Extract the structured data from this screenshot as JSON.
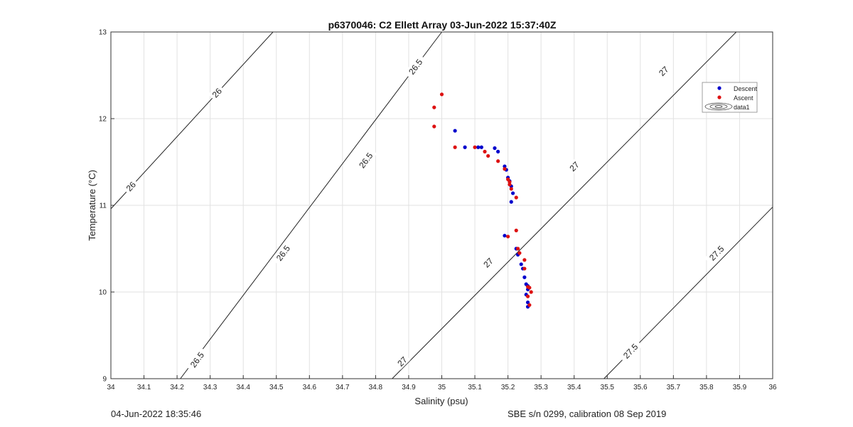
{
  "chart_data": {
    "type": "scatter",
    "title": "p6370046: C2 Ellett Array 03-Jun-2022 15:37:40Z",
    "xlabel": "Salinity (psu)",
    "ylabel": "Temperature (°C)",
    "xlim": [
      34,
      36
    ],
    "ylim": [
      9,
      13
    ],
    "xticks": [
      34,
      34.1,
      34.2,
      34.3,
      34.4,
      34.5,
      34.6,
      34.7,
      34.8,
      34.9,
      35,
      35.1,
      35.2,
      35.3,
      35.4,
      35.5,
      35.6,
      35.7,
      35.8,
      35.9,
      36
    ],
    "xtick_labels": [
      "34",
      "34.1",
      "34.2",
      "34.3",
      "34.4",
      "34.5",
      "34.6",
      "34.7",
      "34.8",
      "34.9",
      "35",
      "35.1",
      "35.2",
      "35.3",
      "35.4",
      "35.5",
      "35.6",
      "35.7",
      "35.8",
      "35.9",
      "36"
    ],
    "yticks": [
      9,
      10,
      11,
      12,
      13
    ],
    "ytick_labels": [
      "9",
      "10",
      "11",
      "12",
      "13"
    ],
    "grid": true,
    "legend_position": "top-right",
    "legend": [
      "Descent",
      "Ascent",
      "data1"
    ],
    "colors": {
      "descent": "#0000cc",
      "ascent": "#dd1111",
      "contour": "#222222",
      "grid": "#e2e2e2"
    },
    "series": [
      {
        "name": "Descent",
        "marker": "dot",
        "x": [
          35.04,
          35.07,
          35.11,
          35.12,
          35.16,
          35.17,
          35.19,
          35.195,
          35.2,
          35.205,
          35.21,
          35.215,
          35.21,
          35.19,
          35.225,
          35.23,
          35.24,
          35.245,
          35.25,
          35.255,
          35.26,
          35.26,
          35.255,
          35.26,
          35.26
        ],
        "y": [
          11.86,
          11.67,
          11.67,
          11.67,
          11.66,
          11.62,
          11.45,
          11.41,
          11.32,
          11.28,
          11.22,
          11.14,
          11.04,
          10.65,
          10.5,
          10.43,
          10.32,
          10.27,
          10.17,
          10.09,
          10.07,
          10.03,
          9.97,
          9.88,
          9.83
        ]
      },
      {
        "name": "Ascent",
        "marker": "dot",
        "x": [
          35.0,
          34.977,
          34.977,
          35.04,
          35.1,
          35.13,
          35.14,
          35.17,
          35.19,
          35.2,
          35.205,
          35.205,
          35.21,
          35.225,
          35.225,
          35.2,
          35.23,
          35.235,
          35.25,
          35.25,
          35.26,
          35.265,
          35.27,
          35.26,
          35.265
        ],
        "y": [
          12.28,
          12.13,
          11.91,
          11.67,
          11.67,
          11.62,
          11.57,
          11.51,
          11.42,
          11.3,
          11.27,
          11.24,
          11.19,
          11.09,
          10.71,
          10.64,
          10.5,
          10.45,
          10.37,
          10.27,
          10.06,
          10.05,
          10.0,
          9.95,
          9.85
        ]
      }
    ],
    "contours": [
      {
        "level": "26",
        "labels": [
          "26",
          "26"
        ]
      },
      {
        "level": "26.5",
        "labels": [
          "26.5",
          "26.5",
          "26.5",
          "26.5"
        ]
      },
      {
        "level": "27",
        "labels": [
          "27",
          "27",
          "27",
          "27"
        ]
      },
      {
        "level": "27.5",
        "labels": [
          "27.5",
          "27.5"
        ]
      }
    ]
  },
  "footer": {
    "left": "04-Jun-2022 18:35:46",
    "right": "SBE s/n 0299, calibration 08 Sep 2019"
  }
}
